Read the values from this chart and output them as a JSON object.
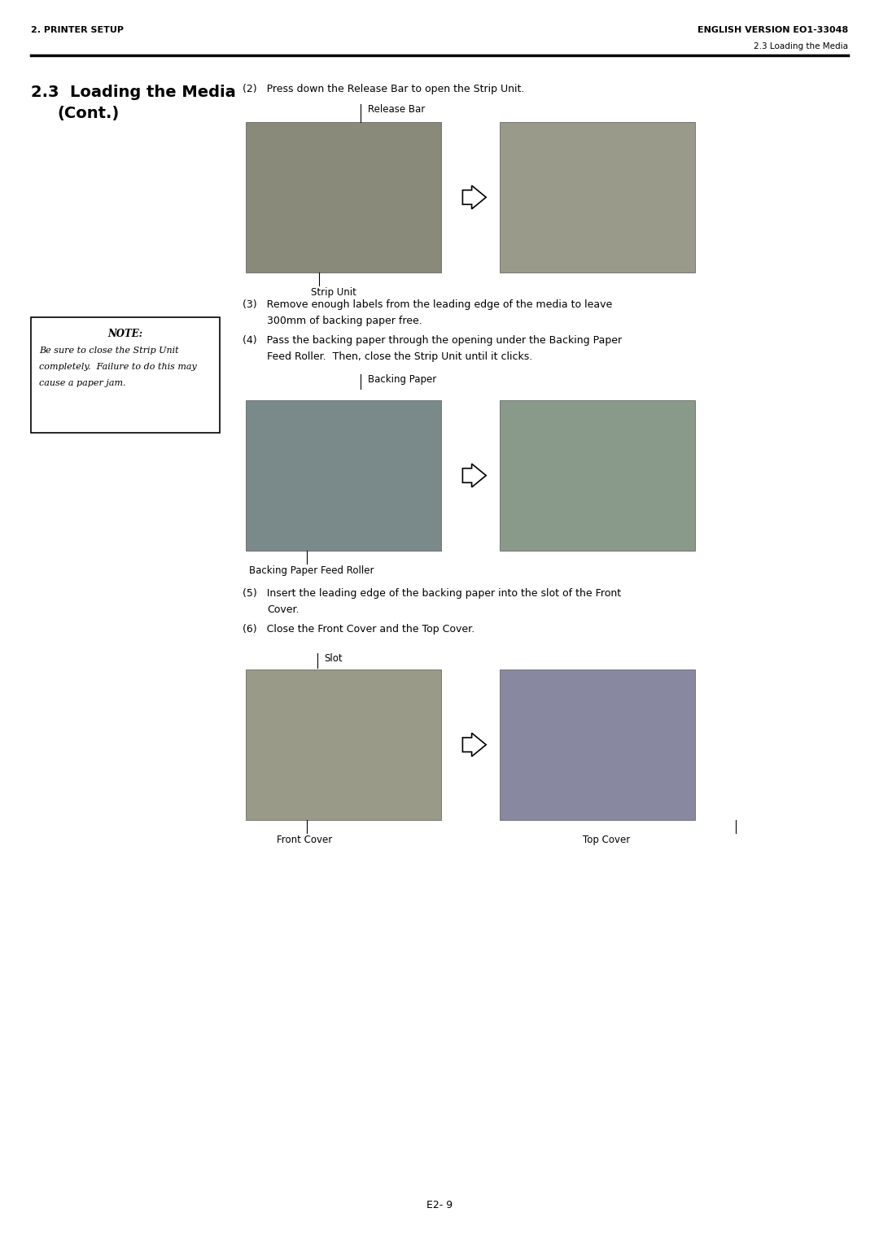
{
  "page_width": 10.8,
  "page_height": 15.28,
  "dpi": 100,
  "bg_color": "#ffffff",
  "header_left": "2. PRINTER SETUP",
  "header_right": "ENGLISH VERSION EO1-33048",
  "header_sub_right": "2.3 Loading the Media",
  "section_title_line1": "2.3  Loading the Media",
  "section_title_line2": "(Cont.)",
  "step2_text": "(2)   Press down the Release Bar to open the Strip Unit.",
  "label_release_bar": "Release Bar",
  "label_strip_unit": "Strip Unit",
  "step3_line1": "(3)   Remove enough labels from the leading edge of the media to leave",
  "step3_line2": "300mm of backing paper free.",
  "step4_line1": "(4)   Pass the backing paper through the opening under the Backing Paper",
  "step4_line2": "Feed Roller.  Then, close the Strip Unit until it clicks.",
  "label_backing_paper": "Backing Paper",
  "label_backing_paper_feed_roller": "Backing Paper Feed Roller",
  "note_title": "NOTE:",
  "note_line1": "Be sure to close the Strip Unit",
  "note_line2": "completely.  Failure to do this may",
  "note_line3": "cause a paper jam.",
  "step5_line1": "(5)   Insert the leading edge of the backing paper into the slot of the Front",
  "step5_line2": "Cover.",
  "step6_text": "(6)   Close the Front Cover and the Top Cover.",
  "label_slot": "Slot",
  "label_front_cover": "Front Cover",
  "label_top_cover": "Top Cover",
  "page_number": "E2- 9",
  "font_color": "#000000",
  "img1_color": "#8a8a7a",
  "img2_color": "#9a9a8a",
  "img3_color": "#7a8a8a",
  "img4_color": "#8a9a8a",
  "img5_color": "#9a9a88",
  "img6_color": "#8888a0"
}
